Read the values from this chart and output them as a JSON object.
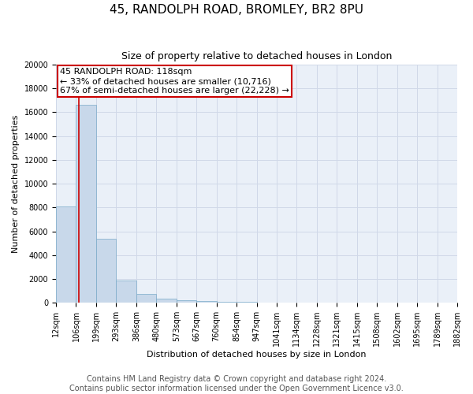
{
  "title": "45, RANDOLPH ROAD, BROMLEY, BR2 8PU",
  "subtitle": "Size of property relative to detached houses in London",
  "xlabel": "Distribution of detached houses by size in London",
  "ylabel": "Number of detached properties",
  "bar_values": [
    8100,
    16600,
    5400,
    1850,
    750,
    350,
    200,
    150,
    100,
    50,
    20,
    10,
    5,
    3,
    2,
    1,
    1,
    0,
    0,
    0
  ],
  "bin_labels": [
    "12sqm",
    "106sqm",
    "199sqm",
    "293sqm",
    "386sqm",
    "480sqm",
    "573sqm",
    "667sqm",
    "760sqm",
    "854sqm",
    "947sqm",
    "1041sqm",
    "1134sqm",
    "1228sqm",
    "1321sqm",
    "1415sqm",
    "1508sqm",
    "1602sqm",
    "1695sqm",
    "1789sqm"
  ],
  "last_label": "1882sqm",
  "bar_color": "#c8d8ea",
  "bar_edge_color": "#7aaac8",
  "grid_color": "#d0d8e8",
  "bg_color": "#eaf0f8",
  "annotation_line1": "45 RANDOLPH ROAD: 118sqm",
  "annotation_line2": "← 33% of detached houses are smaller (10,716)",
  "annotation_line3": "67% of semi-detached houses are larger (22,228) →",
  "vline_bar_index": 0.13,
  "vline_color": "#cc0000",
  "ylim": [
    0,
    20000
  ],
  "yticks": [
    0,
    2000,
    4000,
    6000,
    8000,
    10000,
    12000,
    14000,
    16000,
    18000,
    20000
  ],
  "footer_line1": "Contains HM Land Registry data © Crown copyright and database right 2024.",
  "footer_line2": "Contains public sector information licensed under the Open Government Licence v3.0.",
  "title_fontsize": 11,
  "subtitle_fontsize": 9,
  "ylabel_fontsize": 8,
  "xlabel_fontsize": 8,
  "tick_fontsize": 7,
  "annotation_fontsize": 8,
  "footer_fontsize": 7
}
